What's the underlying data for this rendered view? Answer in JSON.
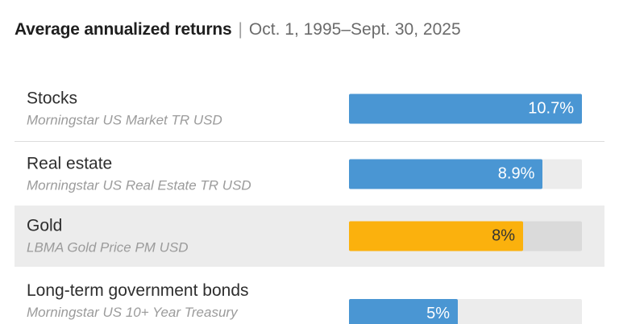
{
  "title": {
    "main": "Average annualized returns",
    "separator": "|",
    "period": "Oct. 1, 1995–Sept. 30, 2025"
  },
  "colors": {
    "blue": "#4A96D3",
    "gold": "#FBB10D",
    "highlight_row_bg": "#ECECEC",
    "divider": "#DCDCDC"
  },
  "chart_data": {
    "type": "bar",
    "orientation": "horizontal",
    "title": "Average annualized returns",
    "subtitle": "Oct. 1, 1995–Sept. 30, 2025",
    "max_value": 10.7,
    "unit": "%",
    "categories": [
      "Stocks",
      "Real estate",
      "Gold",
      "Long-term government bonds"
    ],
    "values": [
      10.7,
      8.9,
      8,
      5
    ],
    "value_labels": [
      "10.7%",
      "8.9%",
      "8%",
      "5%"
    ],
    "index_names": [
      "Morningstar US Market TR USD",
      "Morningstar US Real Estate TR USD",
      "LBMA Gold Price PM USD",
      "Morningstar US 10+ Year Treasury"
    ],
    "highlighted_category": "Gold",
    "legend": "none",
    "grid": "off"
  },
  "rows": [
    {
      "category": "Stocks",
      "index_name": "Morningstar US Market TR USD",
      "value": 10.7,
      "value_label": "10.7%",
      "bar_color": "#4A96D3",
      "value_color": "#FFFFFF",
      "highlighted": false
    },
    {
      "category": "Real estate",
      "index_name": "Morningstar US Real Estate TR USD",
      "value": 8.9,
      "value_label": "8.9%",
      "bar_color": "#4A96D3",
      "value_color": "#FFFFFF",
      "highlighted": false
    },
    {
      "category": "Gold",
      "index_name": "LBMA Gold Price PM USD",
      "value": 8,
      "value_label": "8%",
      "bar_color": "#FBB10D",
      "value_color": "#333333",
      "highlighted": true
    },
    {
      "category": "Long-term government bonds",
      "index_name": "Morningstar US 10+ Year Treasury",
      "value": 5,
      "value_label": "5%",
      "bar_color": "#4A96D3",
      "value_color": "#FFFFFF",
      "highlighted": false
    }
  ]
}
